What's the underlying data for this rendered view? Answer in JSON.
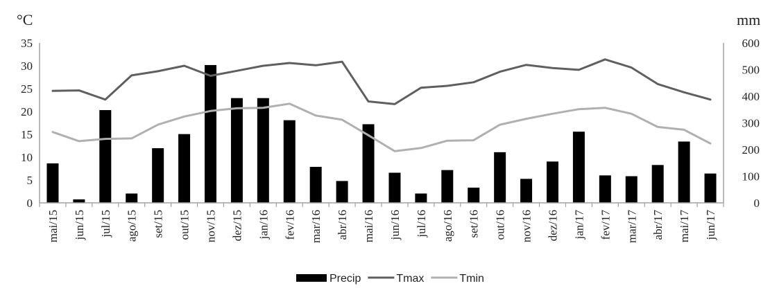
{
  "chart_data": {
    "type": "bar",
    "title": "",
    "y_unit_left": "°C",
    "y_unit_right": "mm",
    "ylim_left": [
      0,
      35
    ],
    "yticks_left": [
      0,
      5,
      10,
      15,
      20,
      25,
      30,
      35
    ],
    "ylim_right": [
      0,
      600
    ],
    "yticks_right": [
      0,
      100,
      200,
      300,
      400,
      500,
      600
    ],
    "grid": false,
    "legend_position": "bottom",
    "categories": [
      "mai/15",
      "jun/15",
      "jul/15",
      "ago/15",
      "set/15",
      "out/15",
      "nov/15",
      "dez/15",
      "jan/16",
      "fev/16",
      "mar/16",
      "abr/16",
      "mai/16",
      "jun/16",
      "jul/16",
      "ago/16",
      "set/16",
      "out/16",
      "nov/16",
      "dez/16",
      "jan/17",
      "fev/17",
      "mar/17",
      "abr/17",
      "mai/17",
      "jun/17"
    ],
    "series": [
      {
        "name": "Precip",
        "kind": "bar",
        "axis": "right",
        "color": "#000000",
        "values": [
          148,
          13,
          348,
          35,
          205,
          258,
          517,
          393,
          393,
          310,
          135,
          82,
          295,
          113,
          35,
          123,
          57,
          190,
          90,
          155,
          267,
          103,
          100,
          142,
          230,
          110
        ]
      },
      {
        "name": "Tmax",
        "kind": "line",
        "axis": "left",
        "color": "#5f5f5f",
        "values": [
          24.5,
          24.6,
          22.6,
          27.9,
          28.8,
          30.0,
          27.8,
          28.9,
          30.0,
          30.6,
          30.1,
          30.9,
          22.2,
          21.6,
          25.2,
          25.6,
          26.4,
          28.7,
          30.2,
          29.5,
          29.1,
          31.4,
          29.6,
          26.0,
          24.2,
          22.6
        ]
      },
      {
        "name": "Tmin",
        "kind": "line",
        "axis": "left",
        "color": "#b0b0b0",
        "values": [
          15.5,
          13.5,
          14.0,
          14.1,
          17.1,
          18.9,
          20.1,
          20.7,
          20.8,
          21.7,
          19.1,
          18.2,
          14.8,
          11.3,
          12.0,
          13.6,
          13.7,
          17.1,
          18.4,
          19.5,
          20.5,
          20.8,
          19.5,
          16.6,
          16.0,
          13.0
        ]
      }
    ]
  }
}
